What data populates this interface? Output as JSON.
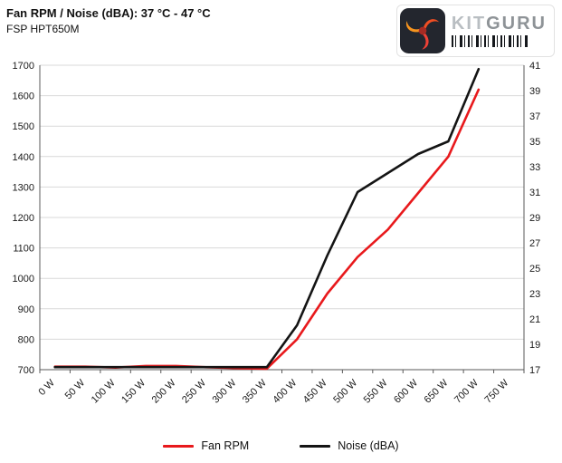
{
  "header": {
    "title": "Fan RPM / Noise (dBA): 37 °C - 47 °C",
    "subtitle": "FSP HPT650M"
  },
  "logo": {
    "brand_kit": "KIT",
    "brand_guru": "GURU"
  },
  "chart_data": {
    "type": "line",
    "title": "Fan RPM / Noise (dBA): 37 °C - 47 °C",
    "subtitle": "FSP HPT650M",
    "categories": [
      "0 W",
      "50 W",
      "100 W",
      "150 W",
      "200 W",
      "250 W",
      "300 W",
      "350 W",
      "400 W",
      "450 W",
      "500 W",
      "550 W",
      "600 W",
      "650 W",
      "700 W",
      "750 W"
    ],
    "left_axis": {
      "min": 700,
      "max": 1700,
      "step": 100,
      "ticks": [
        700,
        800,
        900,
        1000,
        1100,
        1200,
        1300,
        1400,
        1500,
        1600,
        1700
      ]
    },
    "right_axis": {
      "min": 17,
      "max": 41,
      "step": 2,
      "ticks": [
        17,
        19,
        21,
        23,
        25,
        27,
        29,
        31,
        33,
        35,
        37,
        39,
        41
      ]
    },
    "grid": "horizontal",
    "legend_position": "bottom",
    "series": [
      {
        "name": "Fan RPM",
        "axis": "left",
        "color": "#e8191c",
        "values": [
          710,
          710,
          707,
          712,
          712,
          708,
          705,
          703,
          800,
          950,
          1070,
          1160,
          1280,
          1400,
          1620,
          null
        ]
      },
      {
        "name": "Noise (dBA)",
        "axis": "right",
        "color": "#141414",
        "values": [
          17.2,
          17.2,
          17.2,
          17.2,
          17.2,
          17.2,
          17.2,
          17.2,
          20.5,
          26,
          31,
          32.5,
          34,
          35,
          40.7,
          null
        ]
      }
    ]
  },
  "legend": {
    "items": [
      {
        "label": "Fan RPM",
        "color": "#e8191c"
      },
      {
        "label": "Noise (dBA)",
        "color": "#141414"
      }
    ]
  }
}
